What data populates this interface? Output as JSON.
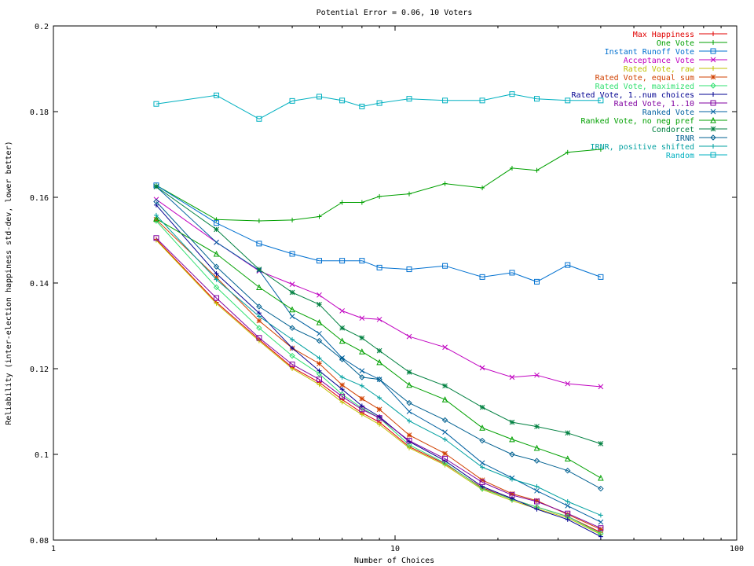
{
  "chart_data": {
    "type": "line",
    "title": "Potential Error = 0.06, 10 Voters",
    "xlabel": "Number of Choices",
    "ylabel": "Reliability (inter-election happiness std-dev, lower better)",
    "xscale": "log",
    "xlim": [
      1,
      100
    ],
    "ylim": [
      0.08,
      0.2
    ],
    "xticks": [
      1,
      10,
      100
    ],
    "xtick_labels": [
      "1",
      "10",
      "100"
    ],
    "yticks": [
      0.08,
      0.1,
      0.12,
      0.14,
      0.16,
      0.18,
      0.2
    ],
    "ytick_labels": [
      "0.08",
      "0.1",
      "0.12",
      "0.14",
      "0.16",
      "0.18",
      "0.2"
    ],
    "grid": false,
    "legend": "top-right",
    "x": [
      2,
      3,
      4,
      5,
      6,
      7,
      8,
      9,
      11,
      14,
      18,
      22,
      26,
      32,
      40
    ],
    "series": [
      {
        "name": "Max Happiness",
        "color": "#e00000",
        "marker": "plus",
        "values": [
          0.1502,
          0.1355,
          0.1268,
          0.1203,
          0.1168,
          0.1128,
          0.1097,
          0.1075,
          0.1018,
          0.0978,
          0.0922,
          0.0895,
          0.0877,
          0.0855,
          0.0818
        ]
      },
      {
        "name": "One Vote",
        "color": "#00a000",
        "marker": "plus",
        "values": [
          0.1628,
          0.1548,
          0.1545,
          0.1547,
          0.1555,
          0.1588,
          0.1588,
          0.1602,
          0.1608,
          0.1632,
          0.1622,
          0.1668,
          0.1663,
          0.1705,
          0.1712
        ]
      },
      {
        "name": "Instant Runoff Vote",
        "color": "#0070d0",
        "marker": "square",
        "values": [
          0.1628,
          0.154,
          0.1492,
          0.1468,
          0.1452,
          0.1452,
          0.1452,
          0.1436,
          0.1432,
          0.144,
          0.1414,
          0.1424,
          0.1403,
          0.1442,
          0.1414
        ]
      },
      {
        "name": "Acceptance Vote",
        "color": "#c000c0",
        "marker": "x",
        "values": [
          0.1595,
          0.1495,
          0.1428,
          0.1397,
          0.1372,
          0.1335,
          0.1318,
          0.1315,
          0.1275,
          0.125,
          0.1202,
          0.118,
          0.1185,
          0.1165,
          0.1158
        ]
      },
      {
        "name": "Rated Vote, raw",
        "color": "#c0c000",
        "marker": "plus",
        "values": [
          0.15,
          0.1352,
          0.1265,
          0.12,
          0.1163,
          0.1122,
          0.1093,
          0.107,
          0.1015,
          0.0975,
          0.0918,
          0.0892,
          0.0873,
          0.0852,
          0.0813
        ]
      },
      {
        "name": "Rated Vote, equal sum",
        "color": "#d04000",
        "marker": "star",
        "values": [
          0.1548,
          0.1413,
          0.1312,
          0.1248,
          0.1212,
          0.1162,
          0.113,
          0.1105,
          0.1045,
          0.1002,
          0.094,
          0.0908,
          0.0892,
          0.086,
          0.0825
        ]
      },
      {
        "name": "Rated Vote, maximized",
        "color": "#30e070",
        "marker": "diamond",
        "values": [
          0.1545,
          0.139,
          0.1295,
          0.123,
          0.1188,
          0.114,
          0.1108,
          0.1085,
          0.1022,
          0.098,
          0.092,
          0.0895,
          0.0877,
          0.0855,
          0.0815
        ]
      },
      {
        "name": "Rated Vote, 1..num choices",
        "color": "#000090",
        "marker": "plus",
        "values": [
          0.1582,
          0.1422,
          0.133,
          0.1248,
          0.1195,
          0.1152,
          0.1113,
          0.1088,
          0.103,
          0.0985,
          0.0925,
          0.0897,
          0.0872,
          0.0848,
          0.0808
        ]
      },
      {
        "name": "Rated Vote, 1..10",
        "color": "#8000a0",
        "marker": "square",
        "values": [
          0.1505,
          0.1365,
          0.1272,
          0.121,
          0.1175,
          0.1135,
          0.1105,
          0.1085,
          0.1032,
          0.099,
          0.0935,
          0.0905,
          0.089,
          0.0862,
          0.0828
        ]
      },
      {
        "name": "Ranked Vote",
        "color": "#0060a0",
        "marker": "x",
        "values": [
          0.1625,
          0.1495,
          0.143,
          0.1322,
          0.1282,
          0.1225,
          0.1195,
          0.1175,
          0.11,
          0.1052,
          0.098,
          0.0945,
          0.0915,
          0.088,
          0.0842
        ]
      },
      {
        "name": "Ranked Vote, no neg pref",
        "color": "#00a000",
        "marker": "triangle",
        "values": [
          0.155,
          0.1468,
          0.139,
          0.1338,
          0.1308,
          0.1265,
          0.124,
          0.1215,
          0.1162,
          0.1128,
          0.1062,
          0.1035,
          0.1015,
          0.099,
          0.0945
        ]
      },
      {
        "name": "Condorcet",
        "color": "#008040",
        "marker": "star",
        "values": [
          0.1625,
          0.1525,
          0.1432,
          0.1378,
          0.135,
          0.1295,
          0.1272,
          0.1242,
          0.1192,
          0.116,
          0.111,
          0.1075,
          0.1065,
          0.105,
          0.1025
        ]
      },
      {
        "name": "IRNR",
        "color": "#006090",
        "marker": "diamond",
        "values": [
          0.159,
          0.1438,
          0.1345,
          0.1295,
          0.1265,
          0.1222,
          0.118,
          0.1175,
          0.112,
          0.108,
          0.1032,
          0.1,
          0.0985,
          0.0962,
          0.092
        ]
      },
      {
        "name": "IRNR, positive shifted",
        "color": "#00a0a0",
        "marker": "plus",
        "values": [
          0.1558,
          0.1408,
          0.1322,
          0.1268,
          0.1225,
          0.118,
          0.116,
          0.1132,
          0.1078,
          0.1035,
          0.097,
          0.0942,
          0.0925,
          0.089,
          0.0858
        ]
      },
      {
        "name": "Random",
        "color": "#00b0c0",
        "marker": "square",
        "values": [
          0.1818,
          0.1838,
          0.1783,
          0.1825,
          0.1835,
          0.1826,
          0.1812,
          0.182,
          0.183,
          0.1826,
          0.1826,
          0.1841,
          0.183,
          0.1826,
          0.1826
        ]
      }
    ]
  }
}
